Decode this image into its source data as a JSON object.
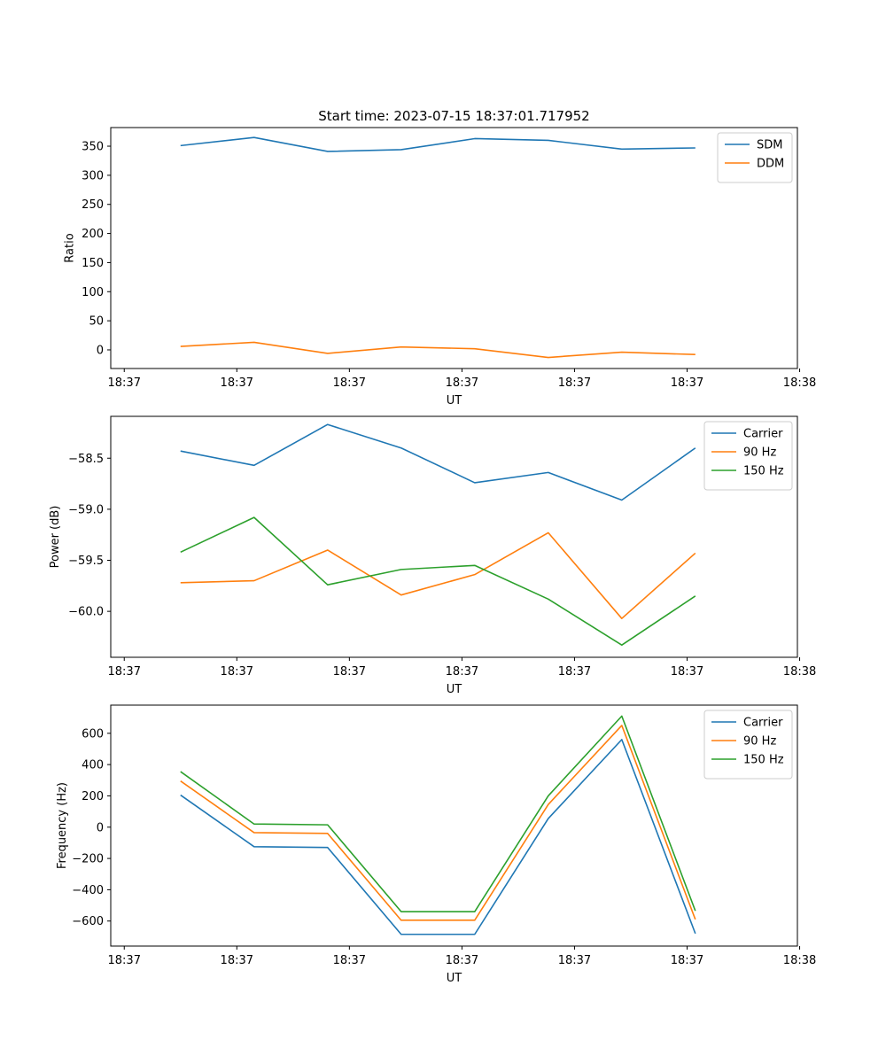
{
  "figure_title": "Start time: 2023-07-15 18:37:01.717952",
  "colors": {
    "blue": "#1f77b4",
    "orange": "#ff7f0e",
    "green": "#2ca02c"
  },
  "chart_data": [
    {
      "type": "line",
      "title": "Start time: 2023-07-15 18:37:01.717952",
      "xlabel": "UT",
      "ylabel": "Ratio",
      "xlim": [
        -0.18,
        8.97
      ],
      "ylim": [
        -32,
        382
      ],
      "x_tick_positions": [
        0,
        1.5,
        3,
        4.5,
        6,
        7.5,
        9
      ],
      "x_tick_labels": [
        "18:37",
        "18:37",
        "18:37",
        "18:37",
        "18:37",
        "18:37",
        "18:38"
      ],
      "y_ticks": [
        0,
        50,
        100,
        150,
        200,
        250,
        300,
        350
      ],
      "y_tick_labels": [
        "0",
        "50",
        "100",
        "150",
        "200",
        "250",
        "300",
        "350"
      ],
      "x": [
        0.75,
        1.73,
        2.71,
        3.69,
        4.67,
        5.65,
        6.63,
        7.61
      ],
      "legend_position": "top-right",
      "series": [
        {
          "name": "SDM",
          "color": "#1f77b4",
          "values": [
            351,
            365,
            341,
            344,
            363,
            360,
            345,
            347
          ]
        },
        {
          "name": "DDM",
          "color": "#ff7f0e",
          "values": [
            6,
            13,
            -6,
            5,
            2,
            -13,
            -4,
            -8
          ]
        }
      ]
    },
    {
      "type": "line",
      "title": "",
      "xlabel": "UT",
      "ylabel": "Power (dB)",
      "xlim": [
        -0.18,
        8.97
      ],
      "ylim": [
        -60.45,
        -58.09
      ],
      "x_tick_positions": [
        0,
        1.5,
        3,
        4.5,
        6,
        7.5,
        9
      ],
      "x_tick_labels": [
        "18:37",
        "18:37",
        "18:37",
        "18:37",
        "18:37",
        "18:37",
        "18:38"
      ],
      "y_ticks": [
        -60.0,
        -59.5,
        -59.0,
        -58.5
      ],
      "y_tick_labels": [
        "−60.0",
        "−59.5",
        "−59.0",
        "−58.5"
      ],
      "x": [
        0.75,
        1.73,
        2.71,
        3.69,
        4.67,
        5.65,
        6.63,
        7.61
      ],
      "legend_position": "top-right",
      "series": [
        {
          "name": "Carrier",
          "color": "#1f77b4",
          "values": [
            -58.43,
            -58.57,
            -58.17,
            -58.4,
            -58.74,
            -58.64,
            -58.91,
            -58.4
          ]
        },
        {
          "name": "90 Hz",
          "color": "#ff7f0e",
          "values": [
            -59.72,
            -59.7,
            -59.4,
            -59.84,
            -59.64,
            -59.23,
            -60.07,
            -59.43
          ]
        },
        {
          "name": "150 Hz",
          "color": "#2ca02c",
          "values": [
            -59.42,
            -59.08,
            -59.74,
            -59.59,
            -59.55,
            -59.88,
            -60.33,
            -59.85
          ]
        }
      ]
    },
    {
      "type": "line",
      "title": "",
      "xlabel": "UT",
      "ylabel": "Frequency (Hz)",
      "xlim": [
        -0.18,
        8.97
      ],
      "ylim": [
        -760,
        780
      ],
      "x_tick_positions": [
        0,
        1.5,
        3,
        4.5,
        6,
        7.5,
        9
      ],
      "x_tick_labels": [
        "18:37",
        "18:37",
        "18:37",
        "18:37",
        "18:37",
        "18:37",
        "18:38"
      ],
      "y_ticks": [
        -600,
        -400,
        -200,
        0,
        200,
        400,
        600
      ],
      "y_tick_labels": [
        "−600",
        "−400",
        "−200",
        "0",
        "200",
        "400",
        "600"
      ],
      "x": [
        0.75,
        1.73,
        2.71,
        3.69,
        4.67,
        5.65,
        6.63,
        7.61
      ],
      "legend_position": "top-right",
      "series": [
        {
          "name": "Carrier",
          "color": "#1f77b4",
          "values": [
            205,
            -125,
            -130,
            -685,
            -685,
            55,
            560,
            -680
          ]
        },
        {
          "name": "90 Hz",
          "color": "#ff7f0e",
          "values": [
            295,
            -35,
            -40,
            -595,
            -595,
            145,
            650,
            -590
          ]
        },
        {
          "name": "150 Hz",
          "color": "#2ca02c",
          "values": [
            355,
            20,
            15,
            -540,
            -540,
            200,
            710,
            -535
          ]
        }
      ]
    }
  ]
}
